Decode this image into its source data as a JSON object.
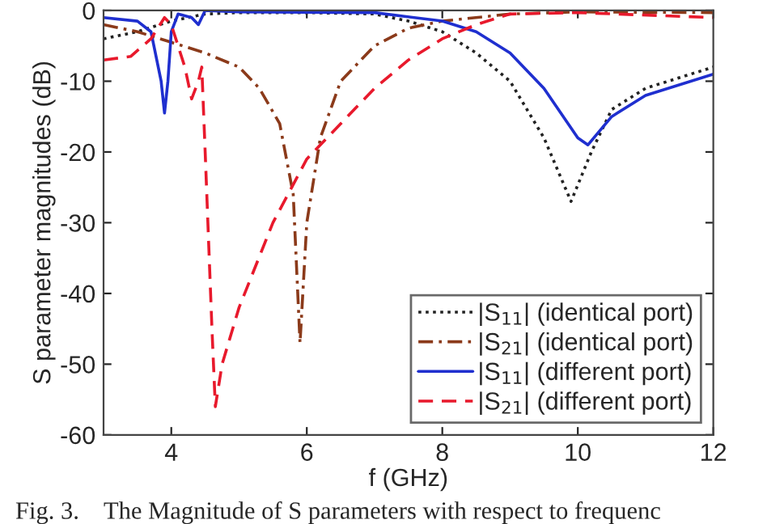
{
  "chart_data": {
    "type": "line",
    "xlabel": "f (GHz)",
    "ylabel": "S parameter magnitudes (dB)",
    "xlim": [
      3,
      12
    ],
    "xticks": [
      4,
      6,
      8,
      10,
      12
    ],
    "ylim": [
      -60,
      0
    ],
    "yticks": [
      -60,
      -50,
      -40,
      -30,
      -20,
      -10,
      0
    ],
    "grid": false,
    "legend": "bottom right",
    "annotations": [
      "Fig. 3.    The Magnitude of S parameters with respect to frequenc"
    ],
    "series": [
      {
        "name": "|S$_{11}$| (identical port)",
        "color": "#222222",
        "line_style": "dotted",
        "x": [
          3,
          3.5,
          4,
          4.5,
          5,
          6,
          7,
          7.5,
          8,
          8.5,
          9,
          9.5,
          9.9,
          10.2,
          10.5,
          11,
          11.5,
          12
        ],
        "values": [
          -4,
          -3,
          -1.5,
          -0.5,
          -0.3,
          -0.3,
          -0.5,
          -1.5,
          -3,
          -6,
          -10,
          -18,
          -27,
          -20,
          -14,
          -11,
          -9.5,
          -8
        ]
      },
      {
        "name": "|S$_{21}$| (identical port)",
        "color": "#8b3a1a",
        "line_style": "dashdot",
        "x": [
          3,
          3.5,
          4,
          4.5,
          5,
          5.3,
          5.6,
          5.8,
          5.9,
          6.0,
          6.2,
          6.5,
          7,
          7.5,
          8,
          9,
          10,
          12
        ],
        "values": [
          -2,
          -3,
          -4.5,
          -6,
          -8,
          -11,
          -16,
          -26,
          -47,
          -30,
          -18,
          -10,
          -5,
          -2.5,
          -1.5,
          -0.5,
          -0.2,
          -0.3
        ]
      },
      {
        "name": "|S$_{11}$| (different port)",
        "color": "#1f2fcf",
        "line_style": "solid",
        "x": [
          3,
          3.5,
          3.7,
          3.85,
          3.9,
          3.95,
          4.0,
          4.1,
          4.3,
          4.4,
          4.5,
          5,
          7,
          8,
          8.5,
          9,
          9.5,
          10,
          10.15,
          10.5,
          11,
          12
        ],
        "values": [
          -1,
          -1.5,
          -3,
          -10,
          -14.5,
          -10,
          -3,
          -0.5,
          -1,
          -2,
          0,
          -0.2,
          -0.3,
          -1.5,
          -3,
          -6,
          -11,
          -18,
          -19,
          -15,
          -12,
          -9
        ]
      },
      {
        "name": "|S$_{21}$| (different port)",
        "color": "#e8192c",
        "line_style": "dashed",
        "x": [
          3,
          3.4,
          3.7,
          3.9,
          4.0,
          4.2,
          4.3,
          4.4,
          4.45,
          4.5,
          4.6,
          4.65,
          4.75,
          5,
          5.5,
          6,
          6.5,
          7,
          7.5,
          8,
          8.5,
          9,
          10,
          12
        ],
        "values": [
          -7,
          -6.5,
          -4,
          -1,
          -2,
          -8,
          -12.5,
          -10,
          -8,
          -20,
          -45,
          -56,
          -50,
          -42,
          -30,
          -21,
          -16,
          -11,
          -7,
          -4,
          -2,
          -0.5,
          -0.3,
          -1
        ]
      }
    ]
  }
}
